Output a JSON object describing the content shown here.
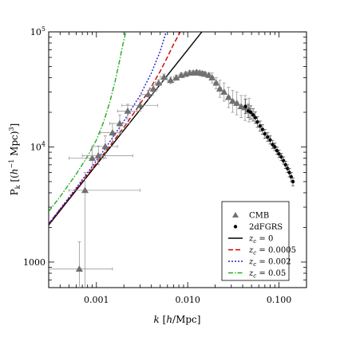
{
  "chart_data": {
    "type": "scatter",
    "title": "",
    "xlabel": "k [h/Mpc]",
    "ylabel": "Pk [(h^-1 Mpc)^3]",
    "x_scale": "log",
    "y_scale": "log",
    "xlim": [
      0.0003,
      0.2
    ],
    "ylim": [
      600,
      100000
    ],
    "grid": false,
    "legend_position": "bottom-right",
    "x_ticks": [
      {
        "value": 0.001,
        "label": "0.001"
      },
      {
        "value": 0.01,
        "label": "0.010"
      },
      {
        "value": 0.1,
        "label": "0.100"
      }
    ],
    "y_ticks": [
      {
        "value": 1000,
        "label": "1000"
      },
      {
        "value": 10000,
        "label": "10^4"
      },
      {
        "value": 100000,
        "label": "10^5"
      }
    ],
    "series": [
      {
        "name": "CMB",
        "kind": "points-with-errors",
        "marker": "triangle",
        "color": "#707070",
        "points": [
          {
            "x": 0.00065,
            "y": 870,
            "xerr": [
              0.0002,
              0.0015
            ],
            "yerr": [
              500,
              1500
            ]
          },
          {
            "x": 0.00075,
            "y": 4200,
            "xerr": [
              0.0005,
              0.003
            ],
            "yerr": [
              500,
              6000
            ]
          },
          {
            "x": 0.0009,
            "y": 8000,
            "xerr": [
              0.0005,
              0.0012
            ],
            "yerr": [
              6500,
              10000
            ]
          },
          {
            "x": 0.00105,
            "y": 8400,
            "xerr": [
              0.0007,
              0.0025
            ],
            "yerr": [
              7000,
              10200
            ]
          },
          {
            "x": 0.00125,
            "y": 10100,
            "xerr": [
              0.0009,
              0.0017
            ],
            "yerr": [
              8000,
              12500
            ]
          },
          {
            "x": 0.0015,
            "y": 13300,
            "xerr": [
              0.0011,
              0.0019
            ],
            "yerr": [
              11000,
              16000
            ]
          },
          {
            "x": 0.0018,
            "y": 16000,
            "xerr": [
              0.0014,
              0.0023
            ],
            "yerr": [
              13000,
              19000
            ]
          },
          {
            "x": 0.0022,
            "y": 20500,
            "xerr": [
              0.0017,
              0.0028
            ],
            "yerr": [
              17500,
              23500
            ]
          },
          {
            "x": 0.003,
            "y": 23000,
            "xerr": [
              0.0019,
              0.0047
            ],
            "yerr": [
              20500,
              26000
            ]
          },
          {
            "x": 0.0037,
            "y": 28600,
            "xerr": [
              0.0031,
              0.0042
            ],
            "yerr": [
              26000,
              31000
            ]
          },
          {
            "x": 0.0042,
            "y": 32000,
            "xerr": [
              0.0038,
              0.0047
            ],
            "yerr": [
              30000,
              34500
            ]
          },
          {
            "x": 0.0048,
            "y": 36000,
            "xerr": [
              0.0044,
              0.0052
            ],
            "yerr": [
              34000,
              38500
            ]
          },
          {
            "x": 0.0055,
            "y": 40500,
            "xerr": [
              0.005,
              0.006
            ],
            "yerr": [
              38000,
              43000
            ]
          },
          {
            "x": 0.0065,
            "y": 38000,
            "xerr": [
              0.006,
              0.0072
            ],
            "yerr": [
              35500,
              40500
            ]
          },
          {
            "x": 0.0075,
            "y": 40000,
            "xerr": [
              0.007,
              0.008
            ],
            "yerr": [
              38000,
              42000
            ]
          },
          {
            "x": 0.0085,
            "y": 42000,
            "xerr": [
              0.008,
              0.009
            ],
            "yerr": [
              40000,
              44000
            ]
          },
          {
            "x": 0.0095,
            "y": 43000,
            "xerr": [
              0.009,
              0.01
            ],
            "yerr": [
              41000,
              45000
            ]
          },
          {
            "x": 0.0105,
            "y": 44000,
            "xerr": [
              0.0099,
              0.011
            ],
            "yerr": [
              42000,
              46000
            ]
          },
          {
            "x": 0.0115,
            "y": 44000,
            "xerr": [
              0.011,
              0.012
            ],
            "yerr": [
              42000,
              46000
            ]
          },
          {
            "x": 0.0125,
            "y": 44500,
            "xerr": [
              0.012,
              0.013
            ],
            "yerr": [
              42500,
              46500
            ]
          },
          {
            "x": 0.0135,
            "y": 44000,
            "xerr": [
              0.013,
              0.014
            ],
            "yerr": [
              42000,
              46000
            ]
          },
          {
            "x": 0.0145,
            "y": 43500,
            "xerr": [
              0.014,
              0.015
            ],
            "yerr": [
              41500,
              45500
            ]
          },
          {
            "x": 0.0155,
            "y": 43000,
            "xerr": [
              0.015,
              0.016
            ],
            "yerr": [
              41000,
              45000
            ]
          },
          {
            "x": 0.017,
            "y": 42000,
            "xerr": [
              0.0162,
              0.0178
            ],
            "yerr": [
              40000,
              44000
            ]
          },
          {
            "x": 0.0185,
            "y": 40000,
            "xerr": [
              0.0177,
              0.0193
            ],
            "yerr": [
              36000,
              44000
            ]
          },
          {
            "x": 0.0205,
            "y": 36000,
            "xerr": [
              0.0195,
              0.0215
            ],
            "yerr": [
              32000,
              40000
            ]
          },
          {
            "x": 0.0225,
            "y": 32000,
            "xerr": [
              0.0215,
              0.0235
            ],
            "yerr": [
              27000,
              38000
            ]
          },
          {
            "x": 0.025,
            "y": 30000,
            "xerr": [
              0.024,
              0.026
            ],
            "yerr": [
              25000,
              36000
            ]
          },
          {
            "x": 0.028,
            "y": 27000,
            "xerr": [
              0.0268,
              0.0292
            ],
            "yerr": [
              22000,
              33000
            ]
          },
          {
            "x": 0.031,
            "y": 25000,
            "xerr": [
              0.0297,
              0.0323
            ],
            "yerr": [
              20000,
              31000
            ]
          },
          {
            "x": 0.0345,
            "y": 24000,
            "xerr": [
              0.033,
              0.036
            ],
            "yerr": [
              19000,
              30000
            ]
          },
          {
            "x": 0.0385,
            "y": 22500,
            "xerr": [
              0.037,
              0.04
            ],
            "yerr": [
              18000,
              28000
            ]
          },
          {
            "x": 0.0425,
            "y": 22000,
            "xerr": [
              0.041,
              0.044
            ],
            "yerr": [
              17000,
              28000
            ]
          },
          {
            "x": 0.047,
            "y": 21000,
            "xerr": [
              0.045,
              0.049
            ],
            "yerr": [
              16500,
              26500
            ]
          }
        ]
      },
      {
        "name": "2dFGRS",
        "kind": "points-with-errors",
        "marker": "dot",
        "color": "#000000",
        "points": [
          {
            "x": 0.043,
            "y": 22500,
            "yerr": [
              19500,
              26000
            ]
          },
          {
            "x": 0.046,
            "y": 20500,
            "yerr": [
              18000,
              23500
            ]
          },
          {
            "x": 0.049,
            "y": 20000,
            "yerr": [
              17500,
              22800
            ]
          },
          {
            "x": 0.052,
            "y": 19000,
            "yerr": [
              16800,
              21500
            ]
          },
          {
            "x": 0.055,
            "y": 18000,
            "yerr": [
              16000,
              20200
            ]
          },
          {
            "x": 0.058,
            "y": 16500,
            "yerr": [
              14800,
              18300
            ]
          },
          {
            "x": 0.062,
            "y": 15200,
            "yerr": [
              13700,
              16800
            ]
          },
          {
            "x": 0.066,
            "y": 14200,
            "yerr": [
              12900,
              15600
            ]
          },
          {
            "x": 0.07,
            "y": 13000,
            "yerr": [
              11900,
              14200
            ]
          },
          {
            "x": 0.075,
            "y": 12200,
            "yerr": [
              11200,
              13300
            ]
          },
          {
            "x": 0.08,
            "y": 11500,
            "yerr": [
              10600,
              12500
            ]
          },
          {
            "x": 0.085,
            "y": 10500,
            "yerr": [
              9700,
              11400
            ]
          },
          {
            "x": 0.09,
            "y": 10000,
            "yerr": [
              9300,
              10800
            ]
          },
          {
            "x": 0.095,
            "y": 9300,
            "yerr": [
              8600,
              10000
            ]
          },
          {
            "x": 0.1,
            "y": 8700,
            "yerr": [
              8100,
              9400
            ]
          },
          {
            "x": 0.106,
            "y": 8200,
            "yerr": [
              7600,
              8800
            ]
          },
          {
            "x": 0.112,
            "y": 7600,
            "yerr": [
              7100,
              8200
            ]
          },
          {
            "x": 0.118,
            "y": 7000,
            "yerr": [
              6500,
              7500
            ]
          },
          {
            "x": 0.124,
            "y": 6500,
            "yerr": [
              6000,
              7000
            ]
          },
          {
            "x": 0.13,
            "y": 6000,
            "yerr": [
              5500,
              6500
            ]
          },
          {
            "x": 0.136,
            "y": 5500,
            "yerr": [
              5000,
              6000
            ]
          },
          {
            "x": 0.142,
            "y": 5000,
            "yerr": [
              4600,
              5400
            ]
          }
        ]
      },
      {
        "name": "z_c = 0",
        "kind": "line",
        "color": "#000000",
        "dash": "solid",
        "points": [
          [
            0.0003,
            2100
          ],
          [
            0.001,
            7000
          ],
          [
            0.003,
            21000
          ],
          [
            0.01,
            70000
          ],
          [
            0.0143,
            100000
          ]
        ]
      },
      {
        "name": "z_c = 0.0005",
        "kind": "line",
        "color": "#cc0000",
        "dash": "dashed",
        "points": [
          [
            0.0003,
            2150
          ],
          [
            0.0006,
            4300
          ],
          [
            0.001,
            7200
          ],
          [
            0.002,
            14800
          ],
          [
            0.003,
            23500
          ],
          [
            0.004,
            33500
          ],
          [
            0.005,
            45500
          ],
          [
            0.006,
            60500
          ],
          [
            0.007,
            78000
          ],
          [
            0.0083,
            100000
          ]
        ]
      },
      {
        "name": "z_c = 0.002",
        "kind": "line",
        "color": "#1f1fcc",
        "dash": "dotted",
        "points": [
          [
            0.0003,
            2150
          ],
          [
            0.0006,
            4400
          ],
          [
            0.001,
            7600
          ],
          [
            0.0015,
            12000
          ],
          [
            0.002,
            16800
          ],
          [
            0.003,
            28000
          ],
          [
            0.004,
            44000
          ],
          [
            0.005,
            68000
          ],
          [
            0.0058,
            100000
          ]
        ]
      },
      {
        "name": "z_c = 0.05",
        "kind": "line",
        "color": "#22aa22",
        "dash": "dashdot",
        "points": [
          [
            0.0003,
            2750
          ],
          [
            0.0004,
            3700
          ],
          [
            0.0006,
            5800
          ],
          [
            0.0008,
            8300
          ],
          [
            0.001,
            11500
          ],
          [
            0.0012,
            16500
          ],
          [
            0.0014,
            24500
          ],
          [
            0.0016,
            37000
          ],
          [
            0.0018,
            57000
          ],
          [
            0.00195,
            78000
          ],
          [
            0.0021,
            100000
          ]
        ]
      }
    ]
  },
  "legend": {
    "items": [
      {
        "label": "CMB",
        "marker": "triangle",
        "color": "#707070"
      },
      {
        "label": "2dFGRS",
        "marker": "dot",
        "color": "#000000"
      },
      {
        "label": "z_c = 0",
        "line": "solid",
        "color": "#000000"
      },
      {
        "label": "z_c = 0.0005",
        "line": "dashed",
        "color": "#cc0000"
      },
      {
        "label": "z_c = 0.002",
        "line": "dotted",
        "color": "#1f1fcc"
      },
      {
        "label": "z_c = 0.05",
        "line": "dashdot",
        "color": "#22aa22"
      }
    ]
  }
}
